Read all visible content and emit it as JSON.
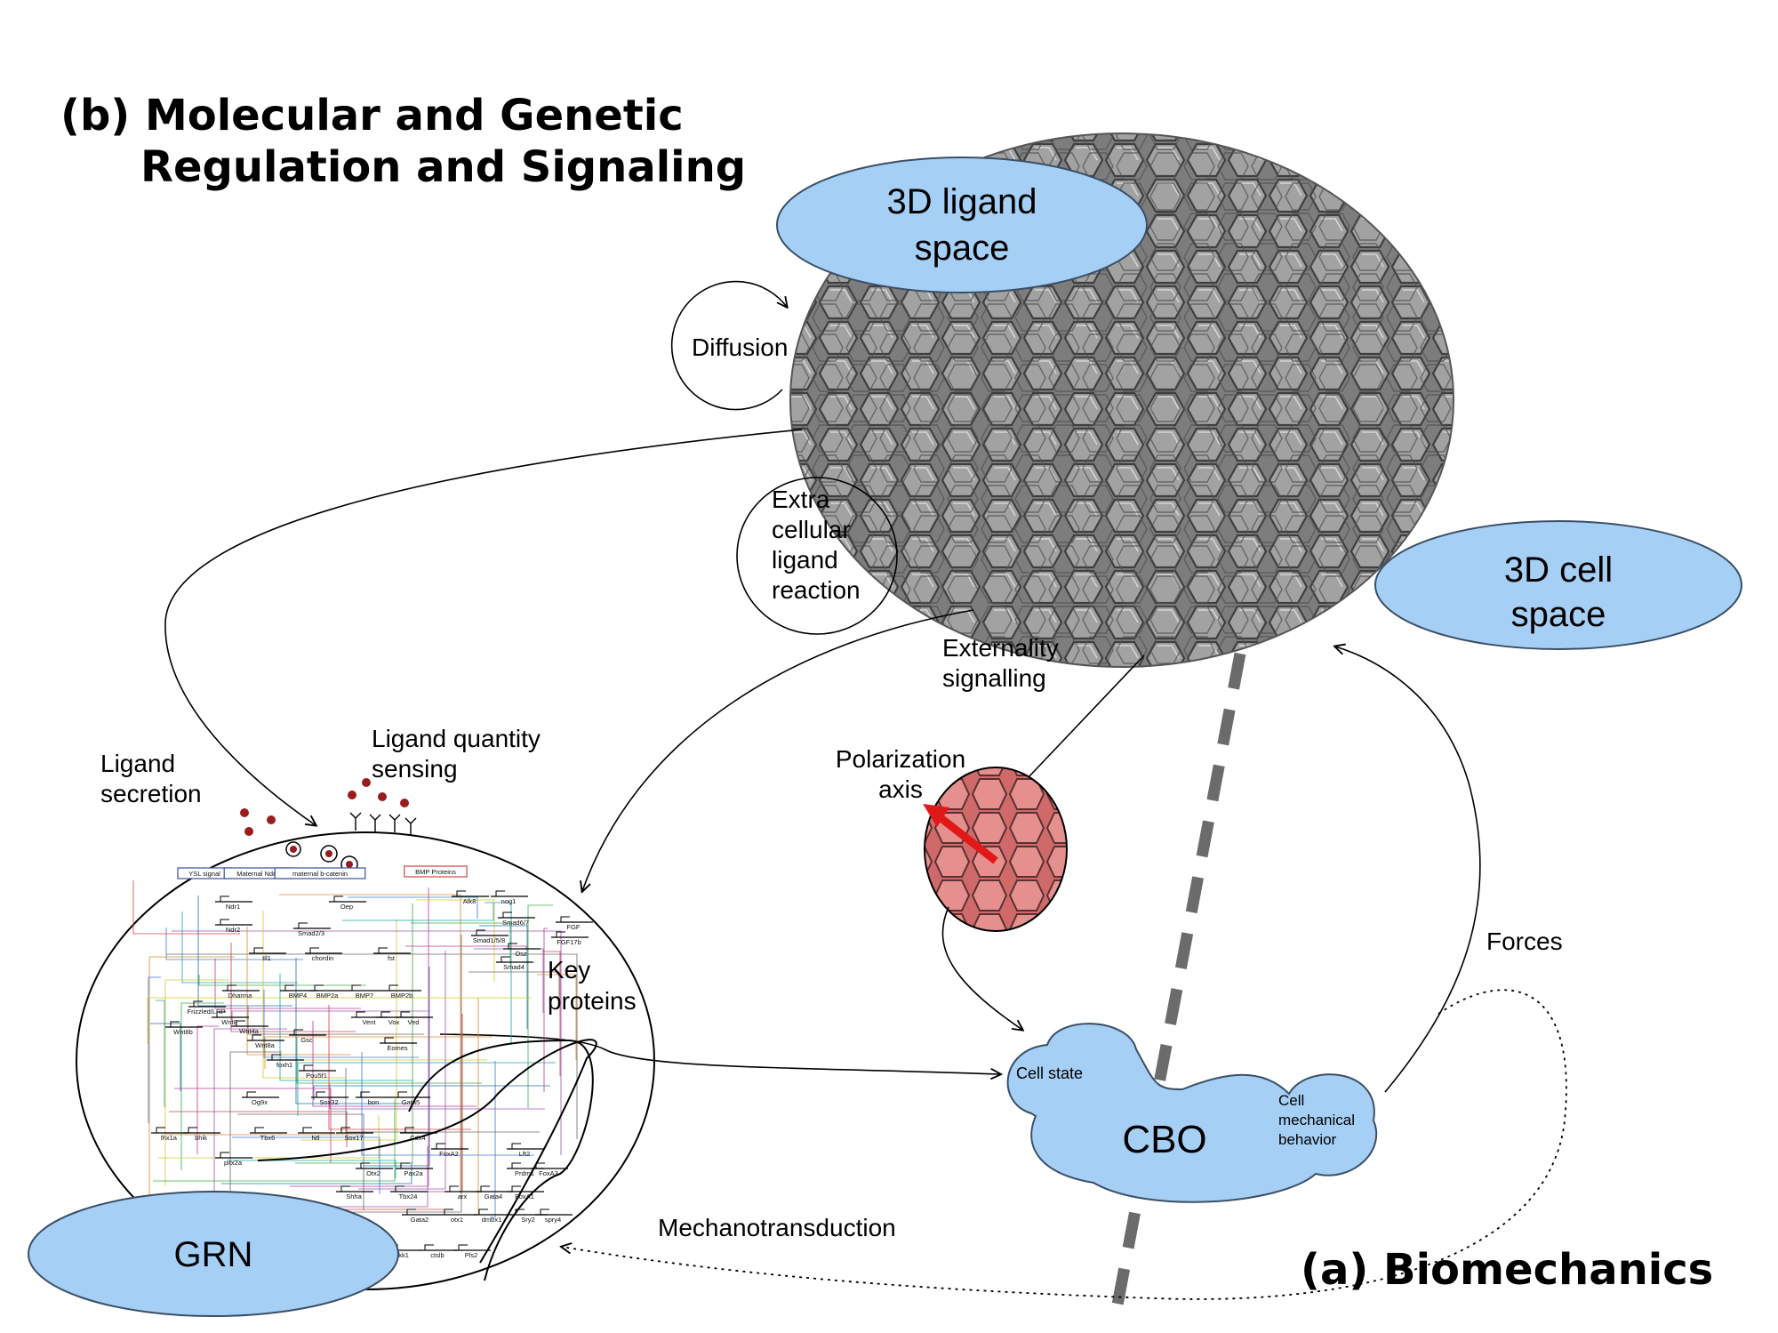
{
  "titles": {
    "panel_b_line1": "(b)  Molecular and Genetic",
    "panel_b_line2": "Regulation and Signaling",
    "panel_a": "(a)  Biomechanics"
  },
  "nodes": {
    "ligand_space_line1": "3D ligand",
    "ligand_space_line2": "space",
    "cell_space_line1": "3D cell",
    "cell_space_line2": "space",
    "grn": "GRN",
    "cbo": "CBO",
    "cell_state": "Cell state",
    "cell_mech_line1": "Cell",
    "cell_mech_line2": "mechanical",
    "cell_mech_line3": "behavior"
  },
  "labels": {
    "diffusion": "Diffusion",
    "extra_line1": "Extra",
    "extra_line2": "cellular",
    "extra_line3": "ligand",
    "extra_line4": "reaction",
    "externality_line1": "Externality",
    "externality_line2": "signalling",
    "polarization_line1": "Polarization",
    "polarization_line2": "axis",
    "ligand_secretion_line1": "Ligand",
    "ligand_secretion_line2": "secretion",
    "ligand_sensing_line1": "Ligand quantity",
    "ligand_sensing_line2": "sensing",
    "key_proteins_line1": "Key",
    "key_proteins_line2": "proteins",
    "forces": "Forces",
    "mechanotransduction": "Mechanotransduction"
  },
  "grn_genes": {
    "g1": "YSL signal",
    "g2": "Maternal Ndr1",
    "g3": "maternal b-catenin",
    "g4": "BMP Proteins",
    "g5": "Ndr1",
    "g6": "Ndr2",
    "g7": "Oep",
    "g8": "Smad2/3",
    "g9": "Alk8",
    "g10": "nog1",
    "g11": "Smad6/7",
    "g12": "Smad1/5/8",
    "g13": "Osz",
    "g14": "Smad4",
    "g15": "FGF",
    "g16": "FGF17b",
    "g17": "tll1",
    "g18": "chordin",
    "g19": "fst",
    "g20": "Dharma",
    "g21": "BMP4",
    "g22": "BMP2a",
    "g23": "BMP7",
    "g24": "BMP2b",
    "g25": "Frizzled/LRP",
    "g26": "Wnt8",
    "g27": "Wnt8b",
    "g28": "Wnt4a",
    "g29": "Wnt8a",
    "g30": "Gsc",
    "g31": "Vent",
    "g32": "Vox",
    "g33": "Ved",
    "g34": "Eomes",
    "g35": "foxh1",
    "g36": "Pou5f1",
    "g37": "Og9x",
    "g38": "Sox32",
    "g39": "bon",
    "g40": "Gata5",
    "g41": "lhx1a",
    "g42": "bhik",
    "g43": "Tbx6",
    "g44": "Ntl",
    "g45": "Sox17",
    "g46": "Cdx4",
    "g47": "FoxA2",
    "g48": "Lft2",
    "g49": "Prdm1",
    "g50": "FoxA3",
    "g51": "pitx2a",
    "g52": "Otx2",
    "g53": "Pax2a",
    "g54": "Shha",
    "g55": "Tbx24",
    "g56": "arx",
    "g57": "Gata4",
    "g58": "FoxA1",
    "g59": "Gata2",
    "g60": "otx1",
    "g61": "dmbx1",
    "g62": "Sry2",
    "g63": "spry4",
    "g64": "dkk1",
    "g65": "ctslb",
    "g66": "Pls2"
  },
  "colors": {
    "blue_fill": "#a6cff5",
    "blue_stroke": "#3a4f66",
    "tissue": "#8a8a8a",
    "cell_pink": "#e07a7a",
    "polarization_arrow": "#e01818",
    "dashed_axis": "#6b6b6b"
  }
}
